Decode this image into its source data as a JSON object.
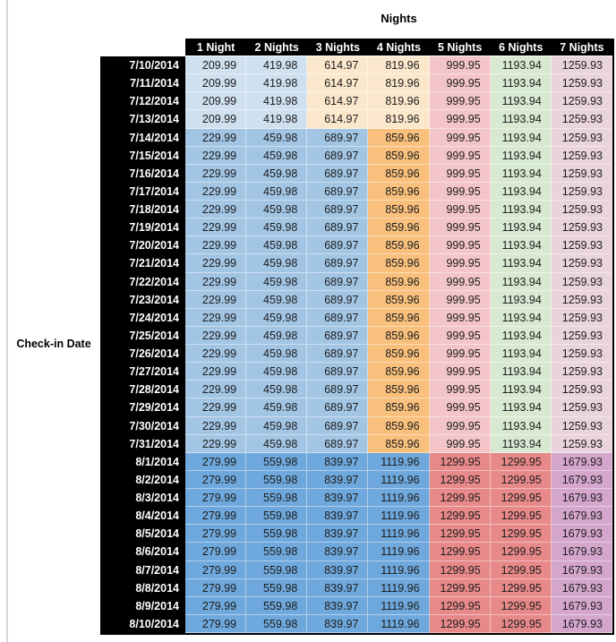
{
  "chart_data": {
    "type": "table",
    "title": "Nights",
    "row_axis_label": "Check-in Date",
    "columns": [
      "1 Night",
      "2 Nights",
      "3 Nights",
      "4 Nights",
      "5 Nights",
      "6 Nights",
      "7 Nights"
    ],
    "sections": [
      {
        "name": "early-july-rates",
        "dates": [
          "7/10/2014",
          "7/11/2014",
          "7/12/2014",
          "7/13/2014"
        ],
        "values": [
          209.99,
          419.98,
          614.97,
          819.96,
          999.95,
          1193.94,
          1259.93
        ],
        "fills": [
          "#cfe0ef",
          "#cfe0ef",
          "#fbe7cc",
          "#fbe7cc",
          "#f3c5c8",
          "#d8e9d2",
          "#e9d3dd"
        ]
      },
      {
        "name": "mid-july-rates",
        "dates": [
          "7/14/2014",
          "7/15/2014",
          "7/16/2014",
          "7/17/2014",
          "7/18/2014",
          "7/19/2014",
          "7/20/2014",
          "7/21/2014",
          "7/22/2014",
          "7/23/2014",
          "7/24/2014",
          "7/25/2014",
          "7/26/2014",
          "7/27/2014",
          "7/28/2014",
          "7/29/2014",
          "7/30/2014",
          "7/31/2014"
        ],
        "values": [
          229.99,
          459.98,
          689.97,
          859.96,
          999.95,
          1193.94,
          1259.93
        ],
        "fills": [
          "#a3c5e4",
          "#a3c5e4",
          "#a3c5e4",
          "#f8c07c",
          "#f3c5c8",
          "#d8e9d2",
          "#e9d3dd"
        ]
      },
      {
        "name": "august-rates",
        "dates": [
          "8/1/2014",
          "8/2/2014",
          "8/3/2014",
          "8/4/2014",
          "8/5/2014",
          "8/6/2014",
          "8/7/2014",
          "8/8/2014",
          "8/9/2014",
          "8/10/2014"
        ],
        "values": [
          279.99,
          559.98,
          839.97,
          1119.96,
          1299.95,
          1299.95,
          1679.93
        ],
        "fills": [
          "#6fa8dc",
          "#6fa8dc",
          "#6fa8dc",
          "#6fa8dc",
          "#e88989",
          "#e88989",
          "#d4a6cc"
        ]
      }
    ]
  },
  "colors": {
    "header_bg": "#000000",
    "header_text": "#ffffff",
    "value_text": "#1c1c1c",
    "edge_line": "#d8d8d8",
    "table_border": "#000000"
  }
}
